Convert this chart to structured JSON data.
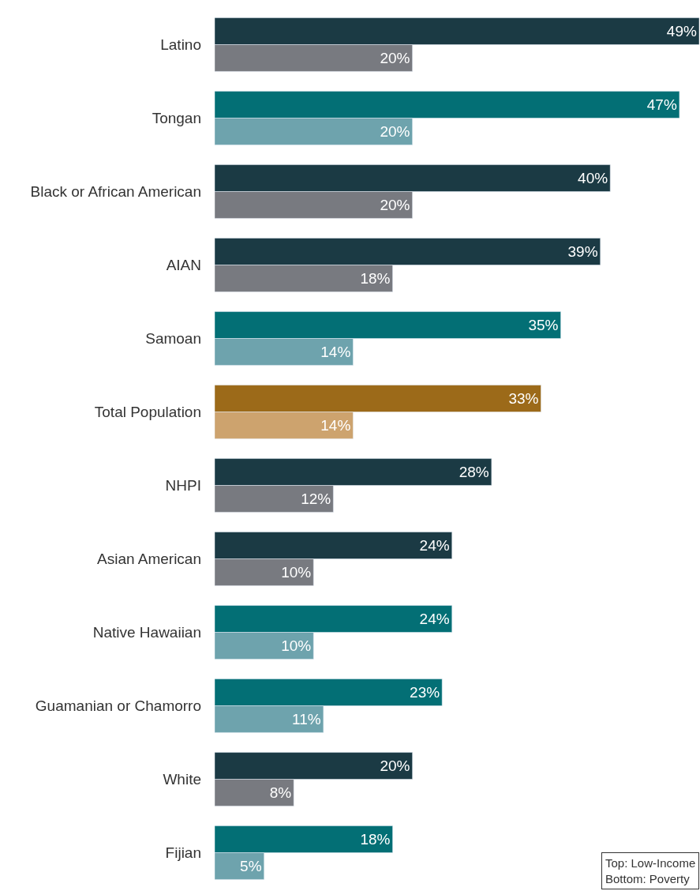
{
  "chart_data": {
    "type": "bar",
    "orientation": "horizontal",
    "categories": [
      "Latino",
      "Tongan",
      "Black or African American",
      "AIAN",
      "Samoan",
      "Total Population",
      "NHPI",
      "Asian American",
      "Native Hawaiian",
      "Guamanian or Chamorro",
      "White",
      "Fijian"
    ],
    "series": [
      {
        "values": [
          49,
          47,
          40,
          39,
          35,
          33,
          28,
          24,
          24,
          23,
          20,
          18
        ],
        "value_labels": [
          "49%",
          "47%",
          "40%",
          "39%",
          "35%",
          "33%",
          "28%",
          "24%",
          "24%",
          "23%",
          "20%",
          "18%"
        ],
        "colors": [
          "#1b3a44",
          "#036f75",
          "#1b3a44",
          "#1b3a44",
          "#036f75",
          "#9c6a19",
          "#1b3a44",
          "#1b3a44",
          "#036f75",
          "#036f75",
          "#1b3a44",
          "#036f75"
        ]
      },
      {
        "values": [
          20,
          20,
          20,
          18,
          14,
          14,
          12,
          10,
          10,
          11,
          8,
          5
        ],
        "value_labels": [
          "20%",
          "20%",
          "20%",
          "18%",
          "14%",
          "14%",
          "12%",
          "10%",
          "10%",
          "11%",
          "8%",
          "5%"
        ],
        "colors": [
          "#787a80",
          "#6ea3ad",
          "#787a80",
          "#787a80",
          "#6ea3ad",
          "#cda36e",
          "#787a80",
          "#787a80",
          "#6ea3ad",
          "#6ea3ad",
          "#787a80",
          "#6ea3ad"
        ]
      }
    ],
    "annotations": [
      "Top: Low-Income\nBottom: Poverty"
    ]
  }
}
